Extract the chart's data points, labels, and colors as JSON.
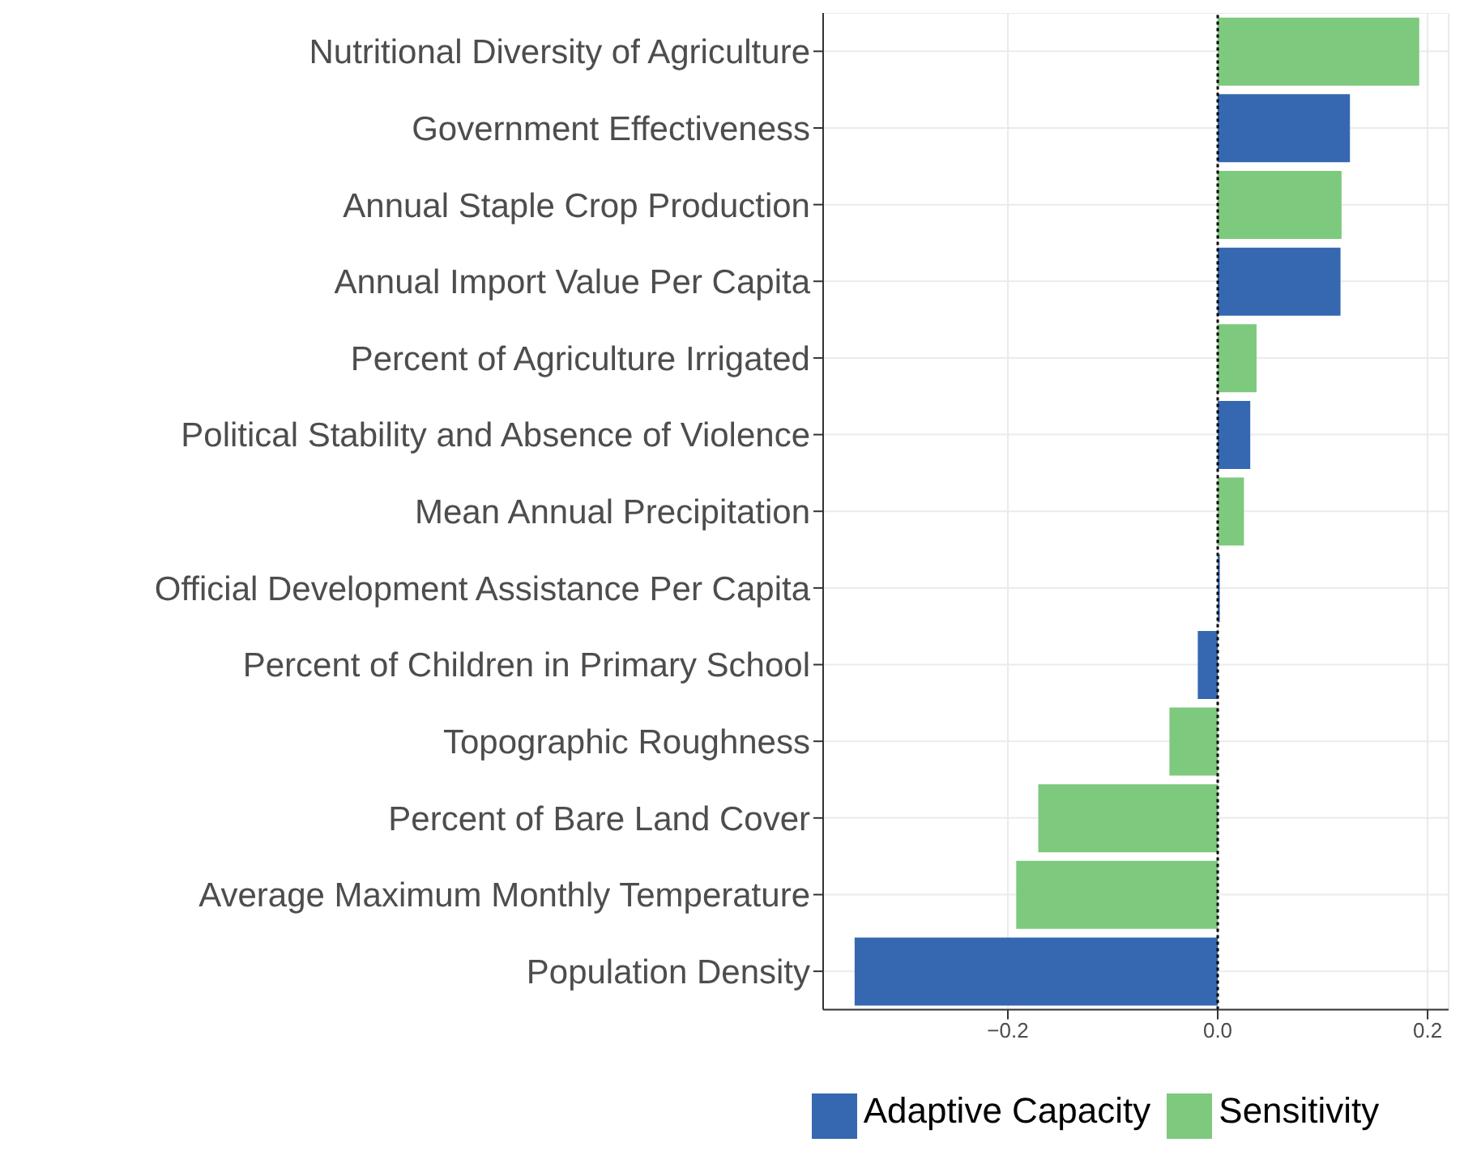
{
  "chart_data": {
    "type": "bar",
    "orientation": "horizontal",
    "stacked": true,
    "categories": [
      "Nutritional Diversity of Agriculture",
      "Government Effectiveness",
      "Annual Staple Crop Production",
      "Annual Import Value Per Capita",
      "Percent of Agriculture Irrigated",
      "Political Stability and Absence of Violence",
      "Mean Annual Precipitation",
      "Official Development Assistance Per Capita",
      "Percent of Children in Primary School",
      "Topographic Roughness",
      "Percent of Bare Land Cover",
      "Average Maximum Monthly Temperature",
      "Population Density"
    ],
    "series": [
      {
        "name": "Adaptive Capacity",
        "color": "#3568b0",
        "values": [
          null,
          0.126,
          null,
          0.117,
          null,
          0.031,
          null,
          0.002,
          -0.019,
          null,
          null,
          null,
          -0.346
        ]
      },
      {
        "name": "Sensitivity",
        "color": "#7dc97d",
        "values": [
          0.192,
          null,
          0.118,
          null,
          0.037,
          null,
          0.025,
          null,
          null,
          -0.046,
          -0.171,
          -0.192,
          null
        ]
      }
    ],
    "xlim": [
      -0.376,
      0.22
    ],
    "xticks": [
      {
        "value": -0.2,
        "label": "−0.2"
      },
      {
        "value": 0,
        "label": "0.0"
      },
      {
        "value": 0.2,
        "label": "0.2"
      }
    ],
    "ref_lines": [
      {
        "axis": "x",
        "value": 0,
        "color": "#000000",
        "line_style": "dotted"
      }
    ],
    "grid": true,
    "legend": "bottom"
  }
}
